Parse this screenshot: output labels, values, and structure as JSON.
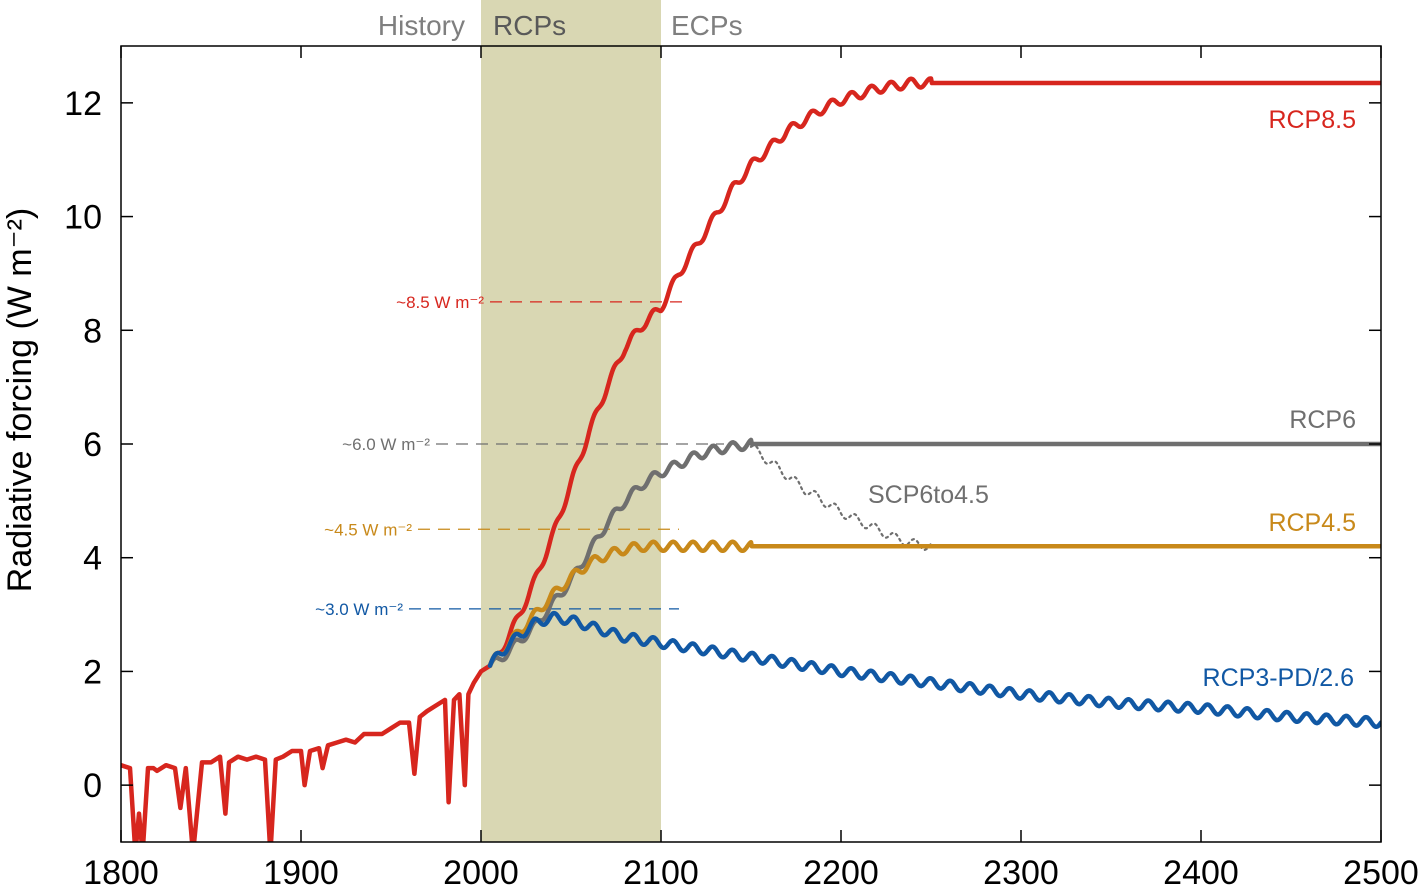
{
  "chart_data": {
    "type": "line",
    "title": "",
    "xlabel": "",
    "ylabel": "Radiative forcing (W m⁻²)",
    "xlim": [
      1800,
      2500
    ],
    "ylim": [
      -1,
      13
    ],
    "x_ticks": [
      "1800",
      "1900",
      "2000",
      "2100",
      "2200",
      "2300",
      "2400",
      "2500"
    ],
    "y_ticks": [
      "0",
      "2",
      "4",
      "6",
      "8",
      "10",
      "12"
    ],
    "periods": [
      {
        "label": "History",
        "color": "#7f7f7f"
      },
      {
        "label": "RCPs",
        "x_range": [
          2000,
          2100
        ],
        "color": "#595959",
        "shade": "#d9d7b3"
      },
      {
        "label": "ECPs",
        "color": "#7f7f7f"
      }
    ],
    "reference_levels": [
      {
        "label": "~8.5 W m⁻²",
        "y": 8.5,
        "x_range": [
          2005,
          2115
        ],
        "color": "#d7261e"
      },
      {
        "label": "~6.0 W m⁻²",
        "y": 6.0,
        "x_range": [
          1975,
          2135
        ],
        "color": "#6f6f6f"
      },
      {
        "label": "~4.5 W m⁻²",
        "y": 4.5,
        "x_range": [
          1965,
          2110
        ],
        "color": "#c8891a"
      },
      {
        "label": "~3.0 W m⁻²",
        "y": 3.1,
        "x_range": [
          1960,
          2110
        ],
        "color": "#1158a4"
      }
    ],
    "series": [
      {
        "name": "History",
        "color": "#d7261e",
        "style": "solid",
        "x": [
          1800,
          1805,
          1808,
          1810,
          1812,
          1815,
          1818,
          1820,
          1825,
          1830,
          1833,
          1836,
          1840,
          1845,
          1850,
          1855,
          1858,
          1860,
          1865,
          1870,
          1875,
          1880,
          1883,
          1886,
          1890,
          1895,
          1900,
          1902,
          1905,
          1910,
          1912,
          1915,
          1920,
          1925,
          1930,
          1935,
          1940,
          1945,
          1950,
          1955,
          1960,
          1963,
          1966,
          1970,
          1975,
          1980,
          1982,
          1985,
          1988,
          1991,
          1993,
          1996,
          2000,
          2005
        ],
        "values": [
          0.35,
          0.3,
          -1.2,
          -0.5,
          -1.2,
          0.3,
          0.3,
          0.25,
          0.35,
          0.3,
          -0.4,
          0.3,
          -1.2,
          0.4,
          0.4,
          0.5,
          -0.5,
          0.4,
          0.5,
          0.45,
          0.5,
          0.45,
          -1.2,
          0.45,
          0.5,
          0.6,
          0.6,
          0.0,
          0.6,
          0.65,
          0.3,
          0.7,
          0.75,
          0.8,
          0.75,
          0.9,
          0.9,
          0.9,
          1.0,
          1.1,
          1.1,
          0.2,
          1.2,
          1.3,
          1.4,
          1.5,
          -0.3,
          1.5,
          1.6,
          0.0,
          1.6,
          1.8,
          2.0,
          2.1
        ]
      },
      {
        "name": "RCP8.5",
        "color": "#d7261e",
        "style": "solid",
        "x": [
          2005,
          2010,
          2020,
          2030,
          2040,
          2050,
          2060,
          2070,
          2080,
          2090,
          2100,
          2110,
          2120,
          2130,
          2140,
          2150,
          2160,
          2170,
          2180,
          2190,
          2200,
          2210,
          2220,
          2230,
          2240,
          2250,
          2300,
          2400,
          2500
        ],
        "values": [
          2.1,
          2.3,
          2.9,
          3.6,
          4.4,
          5.3,
          6.2,
          7.0,
          7.7,
          8.1,
          8.4,
          9.0,
          9.5,
          10.0,
          10.5,
          10.9,
          11.2,
          11.5,
          11.7,
          11.9,
          12.05,
          12.15,
          12.25,
          12.3,
          12.35,
          12.35,
          12.35,
          12.35,
          12.35
        ],
        "wiggle": [
          2005,
          2250
        ]
      },
      {
        "name": "RCP6",
        "color": "#6f6f6f",
        "style": "solid",
        "x": [
          2005,
          2010,
          2020,
          2030,
          2040,
          2050,
          2060,
          2070,
          2080,
          2090,
          2100,
          2110,
          2120,
          2130,
          2140,
          2150,
          2200,
          2300,
          2400,
          2500
        ],
        "values": [
          2.1,
          2.2,
          2.5,
          2.8,
          3.2,
          3.6,
          4.1,
          4.6,
          5.0,
          5.3,
          5.5,
          5.65,
          5.8,
          5.9,
          5.95,
          6.0,
          6.0,
          6.0,
          6.0,
          6.0
        ],
        "wiggle": [
          2005,
          2150
        ]
      },
      {
        "name": "SCP6to4.5",
        "color": "#6f6f6f",
        "style": "dotted",
        "x": [
          2150,
          2160,
          2170,
          2180,
          2190,
          2200,
          2210,
          2220,
          2230,
          2240,
          2250,
          2300,
          2400,
          2500
        ],
        "values": [
          5.95,
          5.7,
          5.45,
          5.2,
          5.0,
          4.8,
          4.65,
          4.5,
          4.35,
          4.25,
          4.2,
          4.2,
          4.2,
          4.2
        ],
        "wiggle": [
          2150,
          2250
        ]
      },
      {
        "name": "RCP4.5",
        "color": "#c8891a",
        "style": "solid",
        "x": [
          2005,
          2010,
          2020,
          2030,
          2040,
          2050,
          2060,
          2070,
          2080,
          2090,
          2100,
          2110,
          2120,
          2130,
          2140,
          2150,
          2200,
          2300,
          2400,
          2500
        ],
        "values": [
          2.1,
          2.3,
          2.65,
          3.0,
          3.35,
          3.65,
          3.9,
          4.05,
          4.15,
          4.2,
          4.2,
          4.2,
          4.2,
          4.2,
          4.2,
          4.2,
          4.2,
          4.2,
          4.2,
          4.2
        ],
        "wiggle": [
          2005,
          2150
        ]
      },
      {
        "name": "RCP3-PD/2.6",
        "color": "#1158a4",
        "style": "solid",
        "x": [
          2005,
          2010,
          2020,
          2030,
          2040,
          2050,
          2060,
          2070,
          2080,
          2090,
          2100,
          2150,
          2200,
          2250,
          2300,
          2350,
          2400,
          2450,
          2500
        ],
        "values": [
          2.1,
          2.3,
          2.6,
          2.85,
          2.95,
          2.9,
          2.8,
          2.7,
          2.6,
          2.55,
          2.5,
          2.25,
          2.0,
          1.8,
          1.6,
          1.45,
          1.35,
          1.2,
          1.1
        ],
        "wiggle": [
          2005,
          2500
        ]
      }
    ],
    "legend": "labels placed at right end of each line"
  }
}
